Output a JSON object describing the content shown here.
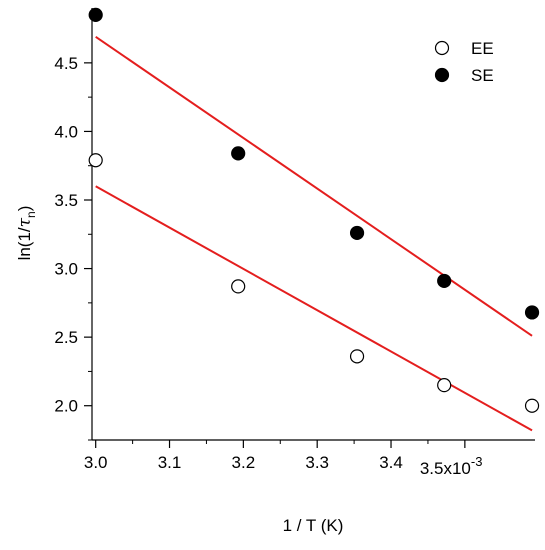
{
  "chart_data": {
    "type": "scatter",
    "xlabel": "1 / T (K)",
    "ylabel_main": "ln(1/",
    "ylabel_tau": "τ",
    "ylabel_sub": "n",
    "ylabel_close": ")",
    "xlim": [
      2.995,
      3.595
    ],
    "ylim": [
      1.75,
      4.9
    ],
    "x_ticks": [
      3.0,
      3.1,
      3.2,
      3.3,
      3.4
    ],
    "x_tick_labels": [
      "3.0",
      "3.1",
      "3.2",
      "3.3",
      "3.4"
    ],
    "x_tick_last": {
      "value": 3.5,
      "label": "3.5x10",
      "exponent": "-3"
    },
    "y_ticks": [
      2.0,
      2.5,
      3.0,
      3.5,
      4.0,
      4.5
    ],
    "y_tick_labels": [
      "2.0",
      "2.5",
      "3.0",
      "3.5",
      "4.0",
      "4.5"
    ],
    "legend_position": "top-right",
    "fit_color": "#e41e1e",
    "series": [
      {
        "name": "EE",
        "marker": "open-circle",
        "x": [
          3.0,
          3.193,
          3.354,
          3.472,
          3.591
        ],
        "y": [
          3.79,
          2.87,
          2.36,
          2.15,
          2.0
        ],
        "fit": {
          "x": [
            3.0,
            3.591
          ],
          "y": [
            3.6,
            1.82
          ]
        }
      },
      {
        "name": "SE",
        "marker": "filled-circle",
        "x": [
          3.0,
          3.193,
          3.354,
          3.472,
          3.591
        ],
        "y": [
          4.85,
          3.84,
          3.26,
          2.91,
          2.68
        ],
        "fit": {
          "x": [
            3.0,
            3.591
          ],
          "y": [
            4.69,
            2.51
          ]
        }
      }
    ]
  }
}
